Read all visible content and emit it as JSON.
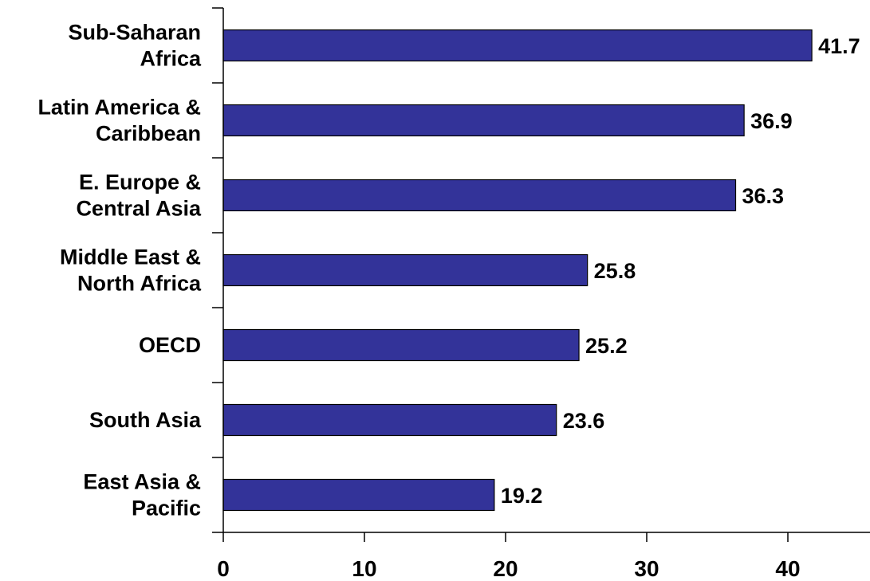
{
  "chart_data": {
    "type": "bar",
    "orientation": "horizontal",
    "title": "",
    "xlabel": "",
    "ylabel": "",
    "categories": [
      [
        "Sub-Saharan",
        "Africa"
      ],
      [
        "Latin America &",
        "Caribbean"
      ],
      [
        "E. Europe &",
        "Central Asia"
      ],
      [
        "Middle East &",
        "North Africa"
      ],
      [
        "OECD"
      ],
      [
        "South Asia"
      ],
      [
        "East Asia &",
        "Pacific"
      ]
    ],
    "values": [
      41.7,
      36.9,
      36.3,
      25.8,
      25.2,
      23.6,
      19.2
    ],
    "value_labels": [
      "41.7",
      "36.9",
      "36.3",
      "25.8",
      "25.2",
      "23.6",
      "19.2"
    ],
    "xlim": [
      0,
      45
    ],
    "xticks": [
      0,
      10,
      20,
      30,
      40
    ],
    "xtick_labels": [
      "0",
      "10",
      "20",
      "30",
      "40"
    ],
    "grid": false,
    "legend": "none",
    "bar_color": "#333399"
  }
}
